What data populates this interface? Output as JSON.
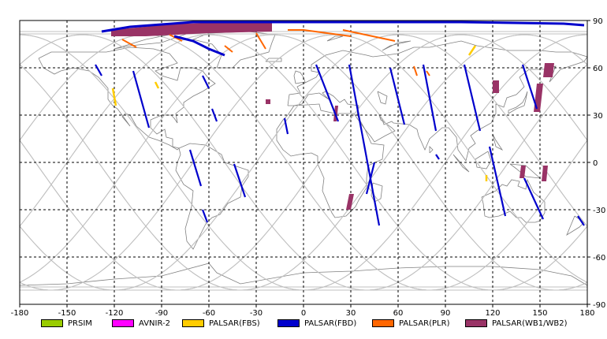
{
  "map": {
    "lon_ticks": [
      "-180",
      "-150",
      "-120",
      "-90",
      "-60",
      "-30",
      "0",
      "30",
      "60",
      "90",
      "120",
      "150",
      "180"
    ],
    "lat_ticks": [
      "90",
      "60",
      "30",
      "0",
      "-30",
      "-60",
      "-90"
    ],
    "grid_lon": [
      -150,
      -120,
      -90,
      -60,
      -30,
      0,
      30,
      60,
      90,
      120,
      150
    ],
    "grid_lat": [
      60,
      30,
      0,
      -30,
      -60
    ],
    "colors": {
      "frame": "#000000",
      "grid": "#000000",
      "coast": "#808080",
      "orbit": "#c0c0c0",
      "PRSIM": "#99cc00",
      "AVNIR-2": "#ff00ff",
      "PALSAR(FBS)": "#ffcc00",
      "PALSAR(FBD)": "#0000cc",
      "PALSAR(PLR)": "#ff6600",
      "PALSAR(WB1/WB2)": "#993366"
    }
  },
  "legend": [
    {
      "label": "PRSIM",
      "color": "#99cc00"
    },
    {
      "label": "AVNIR-2",
      "color": "#ff00ff"
    },
    {
      "label": "PALSAR(FBS)",
      "color": "#ffcc00"
    },
    {
      "label": "PALSAR(FBD)",
      "color": "#0000cc"
    },
    {
      "label": "PALSAR(PLR)",
      "color": "#ff6600"
    },
    {
      "label": "PALSAR(WB1/WB2)",
      "color": "#993366"
    }
  ],
  "observations": {
    "fbd": [
      [
        [
          -132,
          62
        ],
        [
          -128,
          55
        ]
      ],
      [
        [
          -108,
          58
        ],
        [
          -98,
          22
        ]
      ],
      [
        [
          -64,
          55
        ],
        [
          -60,
          47
        ]
      ],
      [
        [
          -58,
          34
        ],
        [
          -55,
          26
        ]
      ],
      [
        [
          -72,
          8
        ],
        [
          -65,
          -15
        ]
      ],
      [
        [
          -64,
          -30
        ],
        [
          -61,
          -38
        ]
      ],
      [
        [
          -44,
          -1
        ],
        [
          -37,
          -22
        ]
      ],
      [
        [
          -12,
          28
        ],
        [
          -10,
          18
        ]
      ],
      [
        [
          8,
          62
        ],
        [
          22,
          26
        ]
      ],
      [
        [
          29,
          62
        ],
        [
          48,
          -40
        ]
      ],
      [
        [
          45,
          0
        ],
        [
          40,
          -20
        ]
      ],
      [
        [
          55,
          60
        ],
        [
          64,
          24
        ]
      ],
      [
        [
          76,
          62
        ],
        [
          84,
          20
        ]
      ],
      [
        [
          102,
          62
        ],
        [
          112,
          20
        ]
      ],
      [
        [
          118,
          10
        ],
        [
          128,
          -34
        ]
      ],
      [
        [
          139,
          62
        ],
        [
          148,
          34
        ]
      ],
      [
        [
          140,
          -10
        ],
        [
          152,
          -36
        ]
      ],
      [
        [
          174,
          -34
        ],
        [
          178,
          -40
        ]
      ],
      [
        [
          84,
          5
        ],
        [
          86,
          2
        ]
      ]
    ],
    "fbd_arcs": [
      [
        [
          -82,
          80
        ],
        [
          -70,
          77
        ],
        [
          -60,
          72
        ],
        [
          -50,
          68
        ]
      ],
      [
        [
          -128,
          83
        ],
        [
          -110,
          86
        ],
        [
          -70,
          89
        ],
        [
          30,
          89
        ],
        [
          100,
          89
        ],
        [
          165,
          88
        ],
        [
          178,
          87
        ]
      ]
    ],
    "fbs": [
      [
        [
          -121,
          47
        ],
        [
          -119,
          36
        ]
      ],
      [
        [
          105,
          68
        ],
        [
          109,
          74
        ]
      ],
      [
        [
          116,
          -8
        ],
        [
          116,
          -12
        ]
      ],
      [
        [
          -94,
          51
        ],
        [
          -92,
          47
        ]
      ]
    ],
    "plr": [
      [
        [
          -115,
          78
        ],
        [
          -106,
          73
        ]
      ],
      [
        [
          -85,
          81
        ],
        [
          -77,
          77
        ]
      ],
      [
        [
          -30,
          82
        ],
        [
          -24,
          72
        ]
      ],
      [
        [
          -50,
          74
        ],
        [
          -45,
          70
        ]
      ],
      [
        [
          -10,
          84
        ],
        [
          0,
          84
        ],
        [
          30,
          80
        ]
      ],
      [
        [
          25,
          84
        ],
        [
          58,
          77
        ]
      ],
      [
        [
          70,
          61
        ],
        [
          72,
          55
        ]
      ],
      [
        [
          78,
          58
        ],
        [
          80,
          55
        ]
      ]
    ],
    "wb": [
      [
        [
          -122,
          84
        ],
        [
          -80,
          88
        ],
        [
          -20,
          89
        ],
        [
          -20,
          83
        ],
        [
          -60,
          82
        ],
        [
          -100,
          80
        ],
        [
          -122,
          80
        ]
      ],
      [
        [
          -24,
          40
        ],
        [
          -21,
          40
        ],
        [
          -21,
          37
        ],
        [
          -24,
          37
        ]
      ],
      [
        [
          20,
          36
        ],
        [
          22,
          36
        ],
        [
          21,
          26
        ],
        [
          19,
          26
        ]
      ],
      [
        [
          29,
          -20
        ],
        [
          32,
          -20
        ],
        [
          30,
          -30
        ],
        [
          27,
          -30
        ]
      ],
      [
        [
          120,
          52
        ],
        [
          124,
          52
        ],
        [
          124,
          44
        ],
        [
          120,
          44
        ]
      ],
      [
        [
          148,
          50
        ],
        [
          152,
          50
        ],
        [
          150,
          32
        ],
        [
          146,
          32
        ]
      ],
      [
        [
          153,
          63
        ],
        [
          159,
          63
        ],
        [
          158,
          54
        ],
        [
          152,
          54
        ]
      ],
      [
        [
          138,
          -2
        ],
        [
          141,
          -2
        ],
        [
          140,
          -10
        ],
        [
          137,
          -10
        ]
      ],
      [
        [
          152,
          -2
        ],
        [
          155,
          -2
        ],
        [
          154,
          -12
        ],
        [
          151,
          -12
        ]
      ]
    ]
  }
}
